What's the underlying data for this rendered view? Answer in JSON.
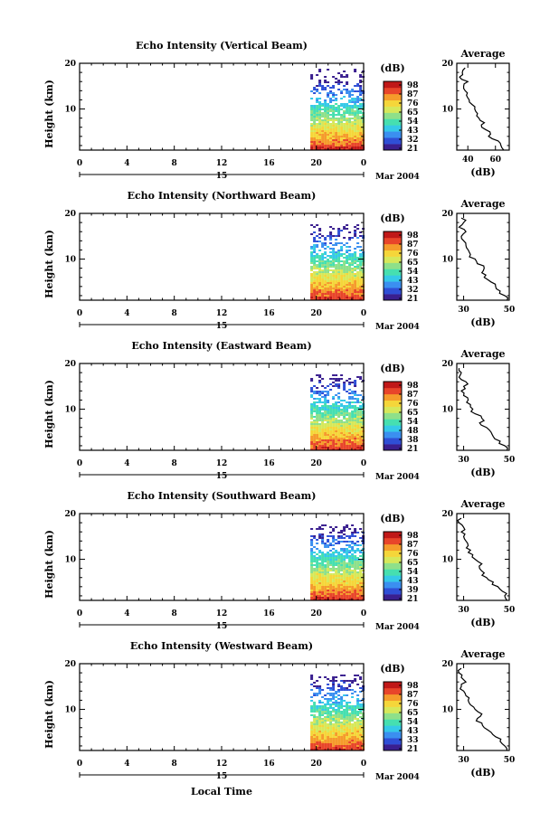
{
  "figure": {
    "xlabel": "Local Time",
    "date_label": "Mar 2004",
    "day_label": "15",
    "colorbar_unit": "(dB)",
    "average_title": "Average",
    "average_xlabel": "(dB)",
    "colormap": [
      "#3a1f8f",
      "#2f4fd6",
      "#3b8ff0",
      "#35c9e8",
      "#46dfb0",
      "#8ee08a",
      "#d6e85a",
      "#f5d63a",
      "#f59b2b",
      "#e8452a",
      "#c01818"
    ]
  },
  "chart_data": [
    {
      "type": "heatmap",
      "title": "Echo Intensity (Vertical Beam)",
      "ylabel": "Height (km)",
      "x_ticks": [
        "0",
        "4",
        "8",
        "12",
        "16",
        "20",
        "0"
      ],
      "y_ticks": [
        "20",
        "10"
      ],
      "xlim": [
        0,
        24
      ],
      "ylim": [
        1,
        20
      ],
      "data_x_range": [
        19.5,
        24
      ],
      "colorbar_ticks": [
        "98",
        "87",
        "76",
        "65",
        "54",
        "43",
        "32",
        "21"
      ],
      "profile": {
        "title": "Average",
        "xlabel": "(dB)",
        "x_ticks": [
          "40",
          "60"
        ],
        "y_ticks": [
          "20",
          "10"
        ],
        "xlim": [
          32,
          70
        ],
        "ylim": [
          1,
          20
        ],
        "height": [
          1,
          2,
          3,
          4,
          5,
          6,
          7,
          8,
          9,
          10,
          11,
          12,
          13,
          14,
          15,
          16,
          17,
          18,
          19
        ],
        "value": [
          66,
          64,
          62,
          55,
          56,
          50,
          52,
          48,
          47,
          45,
          43,
          41,
          39,
          38,
          37,
          40,
          34,
          36,
          38
        ]
      }
    },
    {
      "type": "heatmap",
      "title": "Echo Intensity (Northward Beam)",
      "ylabel": "Height (km)",
      "x_ticks": [
        "0",
        "4",
        "8",
        "12",
        "16",
        "20",
        "0"
      ],
      "y_ticks": [
        "20",
        "10"
      ],
      "xlim": [
        0,
        24
      ],
      "ylim": [
        1,
        20
      ],
      "data_x_range": [
        19.5,
        24
      ],
      "colorbar_ticks": [
        "98",
        "87",
        "76",
        "65",
        "54",
        "43",
        "32",
        "21"
      ],
      "profile": {
        "title": "Average",
        "xlabel": "(dB)",
        "x_ticks": [
          "30",
          "50"
        ],
        "y_ticks": [
          "20",
          "10"
        ],
        "xlim": [
          27,
          50
        ],
        "ylim": [
          1,
          20
        ],
        "height": [
          1,
          2,
          3,
          4,
          5,
          6,
          7,
          8,
          9,
          10,
          11,
          12,
          13,
          14,
          15,
          16,
          17,
          18,
          19
        ],
        "value": [
          49,
          48,
          46,
          44,
          42,
          39,
          38,
          39,
          36,
          35,
          33,
          32,
          31,
          30,
          29,
          31,
          28,
          30,
          29
        ]
      }
    },
    {
      "type": "heatmap",
      "title": "Echo Intensity (Eastward Beam)",
      "ylabel": "Height (km)",
      "x_ticks": [
        "0",
        "4",
        "8",
        "12",
        "16",
        "20",
        "0"
      ],
      "y_ticks": [
        "20",
        "10"
      ],
      "xlim": [
        0,
        24
      ],
      "ylim": [
        1,
        20
      ],
      "data_x_range": [
        19.5,
        24
      ],
      "colorbar_ticks": [
        "98",
        "87",
        "76",
        "65",
        "54",
        "48",
        "38",
        "21"
      ],
      "profile": {
        "title": "Average",
        "xlabel": "(dB)",
        "x_ticks": [
          "30",
          "50"
        ],
        "y_ticks": [
          "20",
          "10"
        ],
        "xlim": [
          27,
          50
        ],
        "ylim": [
          1,
          20
        ],
        "height": [
          1,
          2,
          3,
          4,
          5,
          6,
          7,
          8,
          9,
          10,
          11,
          12,
          13,
          14,
          15,
          16,
          17,
          18,
          19
        ],
        "value": [
          49,
          48,
          46,
          43,
          42,
          40,
          37,
          38,
          35,
          34,
          33,
          32,
          30,
          29,
          30,
          31,
          28,
          29,
          28
        ]
      }
    },
    {
      "type": "heatmap",
      "title": "Echo Intensity (Southward Beam)",
      "ylabel": "Height (km)",
      "x_ticks": [
        "0",
        "4",
        "8",
        "12",
        "16",
        "20",
        "0"
      ],
      "y_ticks": [
        "20",
        "10"
      ],
      "xlim": [
        0,
        24
      ],
      "ylim": [
        1,
        20
      ],
      "data_x_range": [
        19.5,
        24
      ],
      "colorbar_ticks": [
        "98",
        "87",
        "76",
        "65",
        "54",
        "43",
        "39",
        "21"
      ],
      "profile": {
        "title": "Average",
        "xlabel": "(dB)",
        "x_ticks": [
          "30",
          "50"
        ],
        "y_ticks": [
          "20",
          "10"
        ],
        "xlim": [
          27,
          50
        ],
        "ylim": [
          1,
          20
        ],
        "height": [
          1,
          2,
          3,
          4,
          5,
          6,
          7,
          8,
          9,
          10,
          11,
          12,
          13,
          14,
          15,
          16,
          17,
          18,
          19
        ],
        "value": [
          49,
          48,
          47,
          45,
          43,
          40,
          39,
          37,
          38,
          35,
          34,
          33,
          32,
          31,
          30,
          29,
          30,
          28,
          29
        ]
      }
    },
    {
      "type": "heatmap",
      "title": "Echo Intensity (Westward Beam)",
      "ylabel": "Height (km)",
      "x_ticks": [
        "0",
        "4",
        "8",
        "12",
        "16",
        "20",
        "0"
      ],
      "y_ticks": [
        "20",
        "10"
      ],
      "xlim": [
        0,
        24
      ],
      "ylim": [
        1,
        20
      ],
      "data_x_range": [
        19.5,
        24
      ],
      "colorbar_ticks": [
        "98",
        "87",
        "76",
        "65",
        "54",
        "43",
        "33",
        "21"
      ],
      "profile": {
        "title": "Average",
        "xlabel": "(dB)",
        "x_ticks": [
          "30",
          "50"
        ],
        "y_ticks": [
          "20",
          "10"
        ],
        "xlim": [
          27,
          50
        ],
        "ylim": [
          1,
          20
        ],
        "height": [
          1,
          2,
          3,
          4,
          5,
          6,
          7,
          8,
          9,
          10,
          11,
          12,
          13,
          14,
          15,
          16,
          17,
          18,
          19
        ],
        "value": [
          49,
          48,
          46,
          44,
          42,
          39,
          38,
          36,
          38,
          35,
          33,
          32,
          31,
          30,
          29,
          31,
          29,
          28,
          29
        ]
      }
    }
  ]
}
